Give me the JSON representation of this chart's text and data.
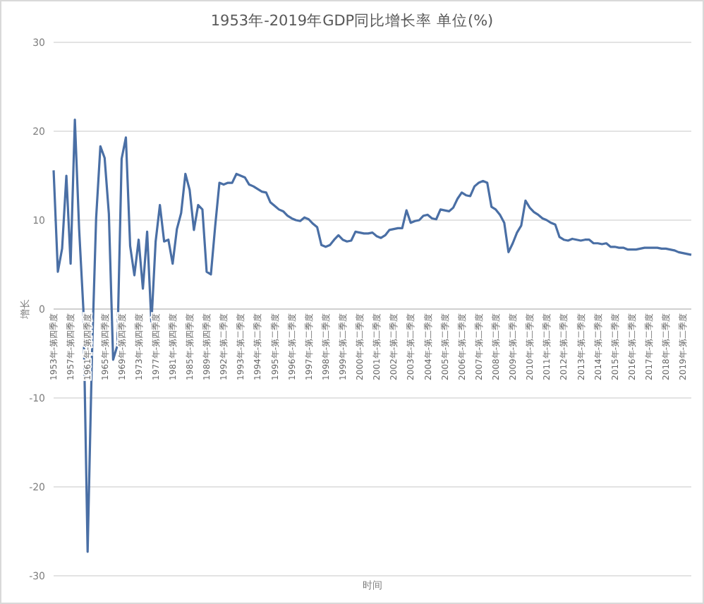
{
  "chart_data": {
    "type": "line",
    "title": "1953年-2019年GDP同比增长率 单位(%)",
    "xlabel": "时间",
    "ylabel": "增长",
    "categories": [
      "1953年-第四季度",
      null,
      null,
      null,
      "1957年-第四季度",
      null,
      null,
      null,
      "1961年-第四季度",
      null,
      null,
      null,
      "1965年-第四季度",
      null,
      null,
      null,
      "1969年-第四季度",
      null,
      null,
      null,
      "1973年-第四季度",
      null,
      null,
      null,
      "1977年-第四季度",
      null,
      null,
      null,
      "1981年-第四季度",
      null,
      null,
      null,
      "1985年-第四季度",
      null,
      null,
      null,
      "1989年-第四季度",
      null,
      null,
      null,
      "1992年-第二季度",
      null,
      null,
      null,
      "1993年-第二季度",
      null,
      null,
      null,
      "1994年-第二季度",
      null,
      null,
      null,
      "1995年-第二季度",
      null,
      null,
      null,
      "1996年-第二季度",
      null,
      null,
      null,
      "1997年-第二季度",
      null,
      null,
      null,
      "1998年-第二季度",
      null,
      null,
      null,
      "1999年-第二季度",
      null,
      null,
      null,
      "2000年-第二季度",
      null,
      null,
      null,
      "2001年-第二季度",
      null,
      null,
      null,
      "2002年-第二季度",
      null,
      null,
      null,
      "2003年-第二季度",
      null,
      null,
      null,
      "2004年-第二季度",
      null,
      null,
      null,
      "2005年-第二季度",
      null,
      null,
      null,
      "2006年-第二季度",
      null,
      null,
      null,
      "2007年-第二季度",
      null,
      null,
      null,
      "2008年-第二季度",
      null,
      null,
      null,
      "2009年-第二季度",
      null,
      null,
      null,
      "2010年-第二季度",
      null,
      null,
      null,
      "2011年-第二季度",
      null,
      null,
      null,
      "2012年-第二季度",
      null,
      null,
      null,
      "2013年-第二季度",
      null,
      null,
      null,
      "2014年-第二季度",
      null,
      null,
      null,
      "2015年-第二季度",
      null,
      null,
      null,
      "2016年-第二季度",
      null,
      null,
      null,
      "2017年-第二季度",
      null,
      null,
      null,
      "2018年-第二季度",
      null,
      null,
      null,
      "2019年-第二季度",
      null,
      null
    ],
    "series": [
      {
        "color": "#4a6fa5",
        "values": [
          15.6,
          4.2,
          6.8,
          15.0,
          5.1,
          21.3,
          9.0,
          0.0,
          -27.3,
          -5.6,
          10.2,
          18.3,
          17.0,
          10.7,
          -5.7,
          -4.1,
          16.9,
          19.3,
          7.1,
          3.8,
          7.8,
          2.3,
          8.7,
          -1.6,
          7.6,
          11.7,
          7.6,
          7.8,
          5.1,
          9.0,
          10.8,
          15.2,
          13.4,
          8.9,
          11.7,
          11.2,
          4.2,
          3.9,
          9.3,
          14.2,
          14.0,
          14.2,
          14.2,
          15.2,
          15.0,
          14.8,
          14.0,
          13.8,
          13.5,
          13.2,
          13.1,
          12.0,
          11.6,
          11.2,
          11.0,
          10.5,
          10.2,
          10.0,
          9.9,
          10.3,
          10.1,
          9.6,
          9.2,
          7.2,
          7.0,
          7.2,
          7.8,
          8.3,
          7.8,
          7.6,
          7.7,
          8.7,
          8.6,
          8.5,
          8.5,
          8.6,
          8.2,
          8.0,
          8.3,
          8.9,
          9.0,
          9.1,
          9.1,
          11.1,
          9.7,
          9.9,
          10.0,
          10.5,
          10.6,
          10.2,
          10.1,
          11.2,
          11.1,
          11.0,
          11.4,
          12.4,
          13.1,
          12.8,
          12.7,
          13.8,
          14.2,
          14.4,
          14.2,
          11.5,
          11.2,
          10.6,
          9.7,
          6.4,
          7.4,
          8.6,
          9.4,
          12.2,
          11.4,
          10.9,
          10.6,
          10.2,
          10.0,
          9.7,
          9.5,
          8.1,
          7.8,
          7.7,
          7.9,
          7.8,
          7.7,
          7.8,
          7.8,
          7.4,
          7.4,
          7.3,
          7.4,
          7.0,
          7.0,
          6.9,
          6.9,
          6.7,
          6.7,
          6.7,
          6.8,
          6.9,
          6.9,
          6.9,
          6.9,
          6.8,
          6.8,
          6.7,
          6.6,
          6.4,
          6.3,
          6.2,
          6.1
        ]
      }
    ],
    "ylim": [
      -30,
      30
    ],
    "yticks": [
      -30,
      -20,
      -10,
      0,
      10,
      20,
      30
    ],
    "grid": "y",
    "line_style": "solid",
    "marker": "none"
  }
}
